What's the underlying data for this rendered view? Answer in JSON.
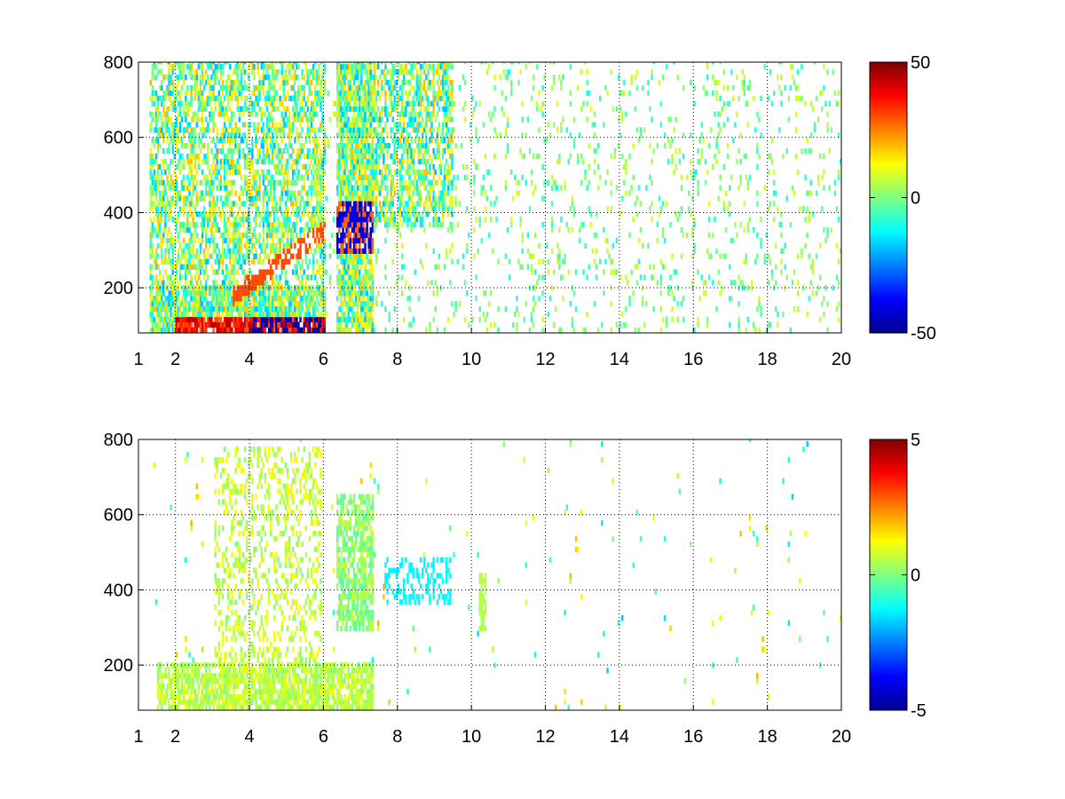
{
  "figure": {
    "background": "#ffffff",
    "colormap": "jet"
  },
  "chart_data": [
    {
      "type": "heatmap",
      "title": "",
      "xlabel": "",
      "ylabel": "",
      "xlim": [
        1,
        20
      ],
      "ylim": [
        80,
        800
      ],
      "xticks": [
        1,
        2,
        4,
        6,
        8,
        10,
        12,
        14,
        16,
        18,
        20
      ],
      "xtick_labels": [
        "1",
        "2",
        "4",
        "6",
        "8",
        "10",
        "12",
        "14",
        "16",
        "18",
        "20"
      ],
      "yticks": [
        200,
        400,
        600,
        800
      ],
      "ytick_labels": [
        "200",
        "400",
        "600",
        "800"
      ],
      "grid": true,
      "colorbar": {
        "clim": [
          -50,
          50
        ],
        "ticks": [
          50,
          0,
          -50
        ],
        "tick_labels": [
          "50",
          "0",
          "-50"
        ]
      },
      "features": [
        {
          "note": "dense broadband signal",
          "x_range": [
            1,
            6
          ],
          "y_range": [
            80,
            800
          ],
          "value_range": [
            -50,
            50
          ]
        },
        {
          "note": "strong positive band near floor",
          "x_range": [
            2,
            5.8
          ],
          "y_range": [
            80,
            110
          ],
          "value": 45
        },
        {
          "note": "strong negative band near floor",
          "x_range": [
            4,
            5.8
          ],
          "y_range": [
            80,
            110
          ],
          "value": -45
        },
        {
          "note": "rising positive ridge",
          "x_start": 3.5,
          "x_end": 5.8,
          "y_start": 170,
          "y_end": 330,
          "value": 30
        },
        {
          "note": "ridge continuation",
          "x_start": 6.3,
          "x_end": 7.3,
          "y_start": 340,
          "y_end": 420,
          "value": 25
        },
        {
          "note": "negative core",
          "x_range": [
            6.4,
            7.3
          ],
          "y_range": [
            280,
            420
          ],
          "value": -40
        },
        {
          "note": "mixed cluster",
          "x_range": [
            6.3,
            9.4
          ],
          "y_range": [
            350,
            800
          ],
          "value_range": [
            -20,
            20
          ]
        },
        {
          "note": "sparse near-zero scatter",
          "x_range": [
            8,
            20
          ],
          "y_range": [
            80,
            800
          ],
          "value_range": [
            -10,
            10
          ]
        }
      ]
    },
    {
      "type": "heatmap",
      "title": "",
      "xlabel": "",
      "ylabel": "",
      "xlim": [
        1,
        20
      ],
      "ylim": [
        80,
        800
      ],
      "xticks": [
        1,
        2,
        4,
        6,
        8,
        10,
        12,
        14,
        16,
        18,
        20
      ],
      "xtick_labels": [
        "1",
        "2",
        "4",
        "6",
        "8",
        "10",
        "12",
        "14",
        "16",
        "18",
        "20"
      ],
      "yticks": [
        200,
        400,
        600,
        800
      ],
      "ytick_labels": [
        "200",
        "400",
        "600",
        "800"
      ],
      "grid": true,
      "colorbar": {
        "clim": [
          -5,
          5
        ],
        "ticks": [
          5,
          0,
          -5
        ],
        "tick_labels": [
          "5",
          "0",
          "-5"
        ]
      },
      "features": [
        {
          "note": "dense near-zero low region",
          "x_range": [
            1.5,
            7.3
          ],
          "y_range": [
            80,
            200
          ],
          "value_range": [
            0,
            1
          ]
        },
        {
          "note": "rising positive ridge",
          "x_start": 3.5,
          "x_end": 5.8,
          "y_start": 170,
          "y_end": 330,
          "value": 1.2
        },
        {
          "note": "cluster",
          "x_range": [
            6.3,
            7.3
          ],
          "y_range": [
            280,
            650
          ],
          "value_range": [
            -0.5,
            0.8
          ]
        },
        {
          "note": "slightly negative cluster",
          "x_range": [
            7.6,
            9.4
          ],
          "y_range": [
            350,
            480
          ],
          "value": -1.3
        },
        {
          "note": "isolated column",
          "x_range": [
            10.2,
            10.4
          ],
          "y_range": [
            280,
            440
          ],
          "value": 0.5
        }
      ]
    }
  ]
}
